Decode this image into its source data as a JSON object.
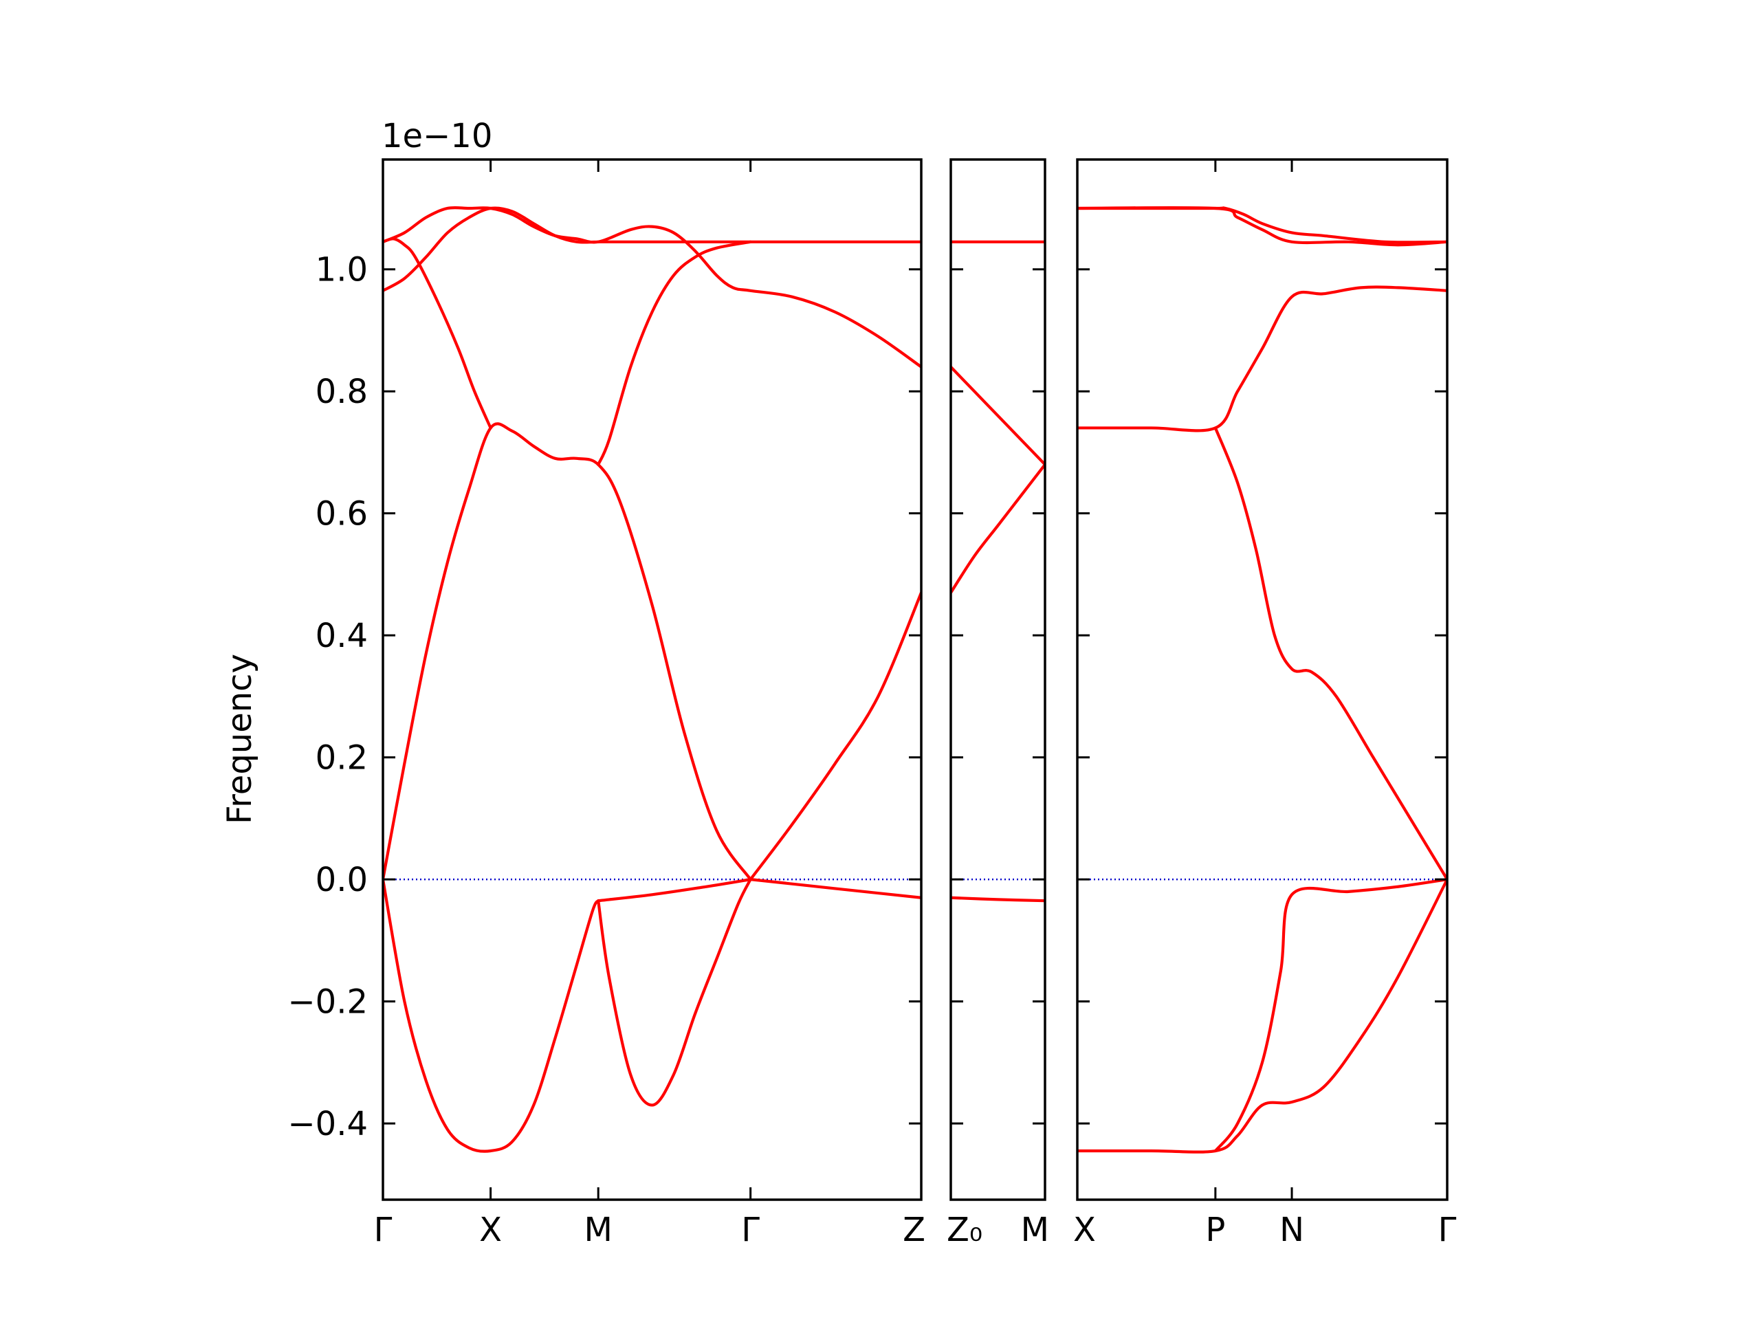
{
  "chart_data": {
    "type": "line",
    "ylabel": "Frequency",
    "offset_text": "1e−10",
    "ylim": [
      -0.525,
      1.18
    ],
    "yticks": [
      -0.4,
      -0.2,
      0.0,
      0.2,
      0.4,
      0.6,
      0.8,
      1.0
    ],
    "ytick_labels": [
      "−0.4",
      "−0.2",
      "0.0",
      "0.2",
      "0.4",
      "0.6",
      "0.8",
      "1.0"
    ],
    "line_color": "#ff0000",
    "zero_line_color": "#0000cc",
    "panels": [
      {
        "name": "panel-1",
        "xlim": [
          0,
          5.0
        ],
        "ticks": [
          {
            "x": 0.0,
            "label": "Γ"
          },
          {
            "x": 1.0,
            "label": "X"
          },
          {
            "x": 2.0,
            "label": "M"
          },
          {
            "x": 3.414,
            "label": "Γ"
          },
          {
            "x": 5.0,
            "label": "Z"
          }
        ],
        "bands": [
          [
            [
              0,
              0
            ],
            [
              0.2,
              0.19
            ],
            [
              0.4,
              0.37
            ],
            [
              0.6,
              0.52
            ],
            [
              0.8,
              0.64
            ],
            [
              1.0,
              0.74
            ],
            [
              1.2,
              0.735
            ],
            [
              1.4,
              0.71
            ],
            [
              1.6,
              0.69
            ],
            [
              1.8,
              0.69
            ],
            [
              2.0,
              0.68
            ],
            [
              2.2,
              0.62
            ],
            [
              2.5,
              0.45
            ],
            [
              2.8,
              0.24
            ],
            [
              3.1,
              0.08
            ],
            [
              3.414,
              0.0
            ]
          ],
          [
            [
              0,
              1.045
            ],
            [
              0.1,
              1.05
            ],
            [
              0.2,
              1.04
            ],
            [
              0.3,
              1.02
            ],
            [
              0.5,
              0.95
            ],
            [
              0.7,
              0.87
            ],
            [
              0.85,
              0.8
            ],
            [
              1.0,
              0.74
            ]
          ],
          [
            [
              0,
              0.965
            ],
            [
              0.2,
              0.985
            ],
            [
              0.4,
              1.02
            ],
            [
              0.6,
              1.06
            ],
            [
              0.8,
              1.085
            ],
            [
              1.0,
              1.1
            ],
            [
              1.2,
              1.095
            ],
            [
              1.4,
              1.075
            ],
            [
              1.6,
              1.055
            ],
            [
              1.8,
              1.045
            ],
            [
              2.0,
              1.045
            ]
          ],
          [
            [
              0,
              1.045
            ],
            [
              0.2,
              1.06
            ],
            [
              0.4,
              1.085
            ],
            [
              0.6,
              1.1
            ],
            [
              0.8,
              1.1
            ],
            [
              1.0,
              1.1
            ],
            [
              1.2,
              1.09
            ],
            [
              1.4,
              1.07
            ],
            [
              1.6,
              1.055
            ],
            [
              1.8,
              1.05
            ],
            [
              2.0,
              1.045
            ],
            [
              2.3,
              1.065
            ],
            [
              2.5,
              1.07
            ],
            [
              2.7,
              1.06
            ],
            [
              2.9,
              1.03
            ],
            [
              3.1,
              0.99
            ],
            [
              3.25,
              0.97
            ],
            [
              3.414,
              0.965
            ],
            [
              3.8,
              0.955
            ],
            [
              4.2,
              0.93
            ],
            [
              4.6,
              0.89
            ],
            [
              5.0,
              0.84
            ]
          ],
          [
            [
              2.0,
              1.045
            ],
            [
              2.4,
              1.045
            ],
            [
              3.0,
              1.045
            ],
            [
              3.414,
              1.045
            ],
            [
              4.2,
              1.045
            ],
            [
              5.0,
              1.045
            ]
          ],
          [
            [
              2.0,
              0.68
            ],
            [
              2.1,
              0.72
            ],
            [
              2.3,
              0.84
            ],
            [
              2.5,
              0.93
            ],
            [
              2.7,
              0.99
            ],
            [
              2.9,
              1.02
            ],
            [
              3.1,
              1.035
            ],
            [
              3.414,
              1.045
            ]
          ],
          [
            [
              0,
              0
            ],
            [
              0.2,
              -0.2
            ],
            [
              0.4,
              -0.33
            ],
            [
              0.6,
              -0.41
            ],
            [
              0.8,
              -0.44
            ],
            [
              1.0,
              -0.445
            ],
            [
              1.2,
              -0.43
            ],
            [
              1.4,
              -0.37
            ],
            [
              1.6,
              -0.26
            ],
            [
              1.8,
              -0.14
            ],
            [
              1.95,
              -0.05
            ],
            [
              2.0,
              -0.035
            ]
          ],
          [
            [
              2.0,
              -0.035
            ],
            [
              2.1,
              -0.16
            ],
            [
              2.3,
              -0.32
            ],
            [
              2.5,
              -0.37
            ],
            [
              2.7,
              -0.32
            ],
            [
              2.9,
              -0.22
            ],
            [
              3.1,
              -0.13
            ],
            [
              3.3,
              -0.04
            ],
            [
              3.414,
              0.0
            ]
          ],
          [
            [
              2.0,
              -0.035
            ],
            [
              2.5,
              -0.025
            ],
            [
              3.0,
              -0.012
            ],
            [
              3.414,
              0.0
            ]
          ],
          [
            [
              3.414,
              0.0
            ],
            [
              3.8,
              0.09
            ],
            [
              4.2,
              0.19
            ],
            [
              4.6,
              0.3
            ],
            [
              5.0,
              0.47
            ]
          ],
          [
            [
              3.414,
              0.0
            ],
            [
              4.2,
              -0.015
            ],
            [
              5.0,
              -0.03
            ]
          ]
        ]
      },
      {
        "name": "panel-2",
        "xlim": [
          0,
          1.0
        ],
        "ticks": [
          {
            "x": 0.0,
            "label": "Z₀"
          },
          {
            "x": 1.0,
            "label": "M"
          }
        ],
        "bands": [
          [
            [
              0,
              0.84
            ],
            [
              0.25,
              0.8
            ],
            [
              0.5,
              0.76
            ],
            [
              0.75,
              0.72
            ],
            [
              1.0,
              0.68
            ]
          ],
          [
            [
              0,
              0.47
            ],
            [
              0.25,
              0.53
            ],
            [
              0.5,
              0.58
            ],
            [
              0.75,
              0.63
            ],
            [
              1.0,
              0.68
            ]
          ],
          [
            [
              0,
              1.045
            ],
            [
              1.0,
              1.045
            ]
          ],
          [
            [
              0,
              -0.03
            ],
            [
              0.5,
              -0.033
            ],
            [
              1.0,
              -0.035
            ]
          ]
        ]
      },
      {
        "name": "panel-3",
        "xlim": [
          0,
          3.0
        ],
        "ticks": [
          {
            "x": 0.0,
            "label": "X"
          },
          {
            "x": 1.12,
            "label": "P"
          },
          {
            "x": 1.74,
            "label": "N"
          },
          {
            "x": 3.0,
            "label": "Γ"
          }
        ],
        "bands": [
          [
            [
              0,
              1.1
            ],
            [
              0.6,
              1.1
            ],
            [
              1.12,
              1.1
            ],
            [
              1.2,
              1.1
            ],
            [
              1.35,
              1.09
            ],
            [
              1.5,
              1.075
            ],
            [
              1.74,
              1.06
            ],
            [
              2.0,
              1.055
            ],
            [
              2.5,
              1.045
            ],
            [
              3.0,
              1.045
            ]
          ],
          [
            [
              0,
              1.1
            ],
            [
              1.12,
              1.1
            ],
            [
              1.3,
              1.085
            ],
            [
              1.5,
              1.065
            ],
            [
              1.74,
              1.045
            ],
            [
              2.2,
              1.045
            ],
            [
              2.6,
              1.04
            ],
            [
              3.0,
              1.045
            ]
          ],
          [
            [
              0,
              0.74
            ],
            [
              0.6,
              0.74
            ],
            [
              1.12,
              0.74
            ],
            [
              1.3,
              0.8
            ],
            [
              1.5,
              0.87
            ],
            [
              1.74,
              0.955
            ],
            [
              2.0,
              0.96
            ],
            [
              2.3,
              0.97
            ],
            [
              2.6,
              0.97
            ],
            [
              3.0,
              0.965
            ]
          ],
          [
            [
              1.12,
              0.74
            ],
            [
              1.3,
              0.65
            ],
            [
              1.45,
              0.54
            ],
            [
              1.6,
              0.4
            ],
            [
              1.74,
              0.345
            ],
            [
              1.9,
              0.34
            ],
            [
              2.1,
              0.3
            ],
            [
              2.4,
              0.2
            ],
            [
              2.7,
              0.1
            ],
            [
              3.0,
              0.0
            ]
          ],
          [
            [
              0,
              -0.445
            ],
            [
              0.6,
              -0.445
            ],
            [
              1.12,
              -0.445
            ],
            [
              1.3,
              -0.42
            ],
            [
              1.5,
              -0.37
            ],
            [
              1.74,
              -0.365
            ],
            [
              2.0,
              -0.34
            ],
            [
              2.3,
              -0.26
            ],
            [
              2.6,
              -0.16
            ],
            [
              3.0,
              0.0
            ]
          ],
          [
            [
              1.12,
              -0.445
            ],
            [
              1.3,
              -0.4
            ],
            [
              1.5,
              -0.3
            ],
            [
              1.65,
              -0.15
            ],
            [
              1.74,
              -0.025
            ],
            [
              2.2,
              -0.02
            ],
            [
              2.6,
              -0.012
            ],
            [
              3.0,
              0.0
            ]
          ]
        ]
      }
    ]
  }
}
